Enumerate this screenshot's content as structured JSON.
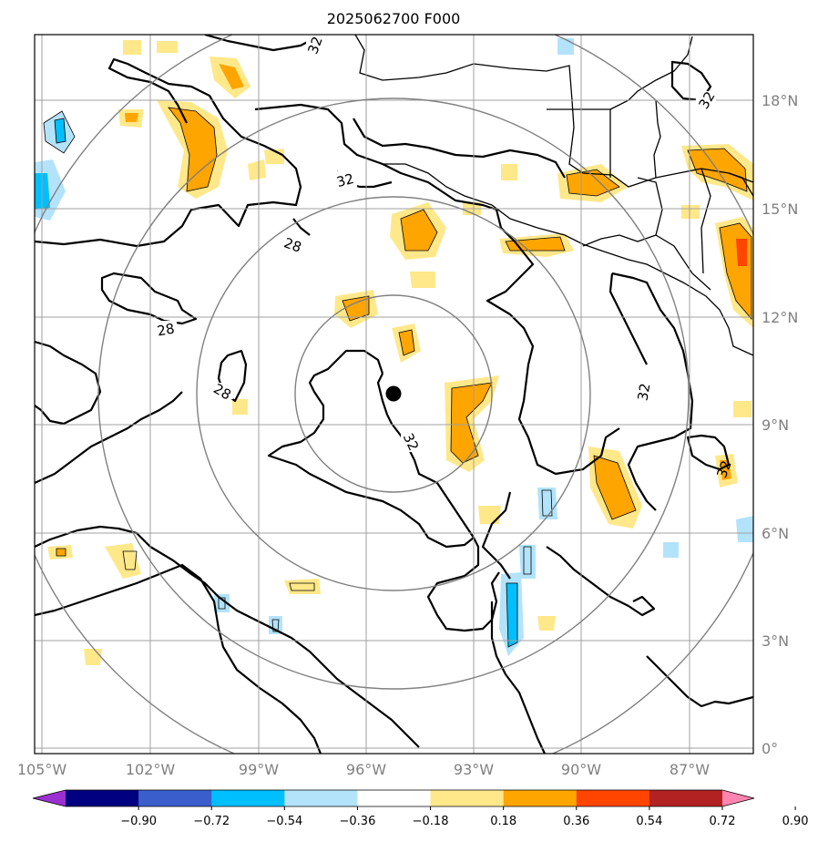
{
  "title": "2025062700 F000",
  "longitude_labels": [
    "105°W",
    "102°W",
    "99°W",
    "96°W",
    "93°W",
    "90°W",
    "87°W"
  ],
  "latitude_labels": [
    "18°N",
    "15°N",
    "12°N",
    "9°N",
    "6°N",
    "3°N",
    "0°"
  ],
  "contour_labels": [
    "32",
    "32",
    "28",
    "28",
    "28",
    "32",
    "32",
    "32",
    "32"
  ],
  "center_marker": {
    "lon": -95.3,
    "lat": 9.8
  },
  "range_rings": 4,
  "colorbar": {
    "tick_labels": [
      "−0.90",
      "−0.72",
      "−0.54",
      "−0.36",
      "−0.18",
      "0.18",
      "0.36",
      "0.54",
      "0.72",
      "0.90"
    ],
    "colors": [
      "#9b30d0",
      "#000080",
      "#3a5fcd",
      "#00bfff",
      "#b3e3fb",
      "#ffffff",
      "#ffe88a",
      "#ffa500",
      "#ff4500",
      "#b22222",
      "#ff85b0"
    ],
    "extend": "both"
  },
  "colors": {
    "frame": "#000000",
    "grid": "#a0a0a0",
    "range_ring": "#808080",
    "label_gray": "#808080"
  }
}
